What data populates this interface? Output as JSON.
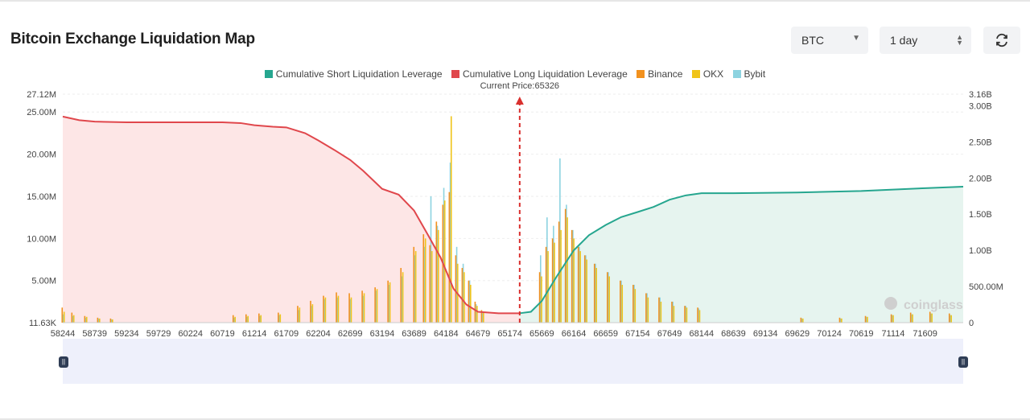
{
  "header": {
    "title": "Bitcoin Exchange Liquidation Map",
    "coin_select": "BTC",
    "range_select": "1 day",
    "refresh_icon": "refresh-icon"
  },
  "colors": {
    "short": "#26a68f",
    "long": "#e0474c",
    "binance": "#f2911e",
    "okx": "#f0c419",
    "bybit": "#8dd3e0",
    "short_fill": "#e6f4ef",
    "long_fill": "#fde6e6",
    "current_price": "#d9302e"
  },
  "chart_data": {
    "type": "bar",
    "title": "Bitcoin Exchange Liquidation Map",
    "legend": [
      {
        "key": "short",
        "label": "Cumulative Short Liquidation Leverage"
      },
      {
        "key": "long",
        "label": "Cumulative Long Liquidation Leverage"
      },
      {
        "key": "binance",
        "label": "Binance"
      },
      {
        "key": "okx",
        "label": "OKX"
      },
      {
        "key": "bybit",
        "label": "Bybit"
      }
    ],
    "legend_position": "top-center",
    "current_price": 65326,
    "current_price_label": "Current Price:65326",
    "x_range": [
      58244,
      72200
    ],
    "x_ticks": [
      58244,
      58739,
      59234,
      59729,
      60224,
      60719,
      61214,
      61709,
      62204,
      62699,
      63194,
      63689,
      64184,
      64679,
      65174,
      65669,
      66164,
      66659,
      67154,
      67649,
      68144,
      68639,
      69134,
      69629,
      70124,
      70619,
      71114,
      71609
    ],
    "y_left": {
      "range": [
        11630,
        27120000
      ],
      "ticks": [
        {
          "value": 11630,
          "label": "11.63K"
        },
        {
          "value": 5000000,
          "label": "5.00M"
        },
        {
          "value": 10000000,
          "label": "10.00M"
        },
        {
          "value": 15000000,
          "label": "15.00M"
        },
        {
          "value": 20000000,
          "label": "20.00M"
        },
        {
          "value": 25000000,
          "label": "25.00M"
        },
        {
          "value": 27120000,
          "label": "27.12M"
        }
      ]
    },
    "y_right": {
      "range": [
        0,
        3160000000
      ],
      "ticks": [
        {
          "value": 0,
          "label": "0"
        },
        {
          "value": 500000000,
          "label": "500.00M"
        },
        {
          "value": 1000000000,
          "label": "1.00B"
        },
        {
          "value": 1500000000,
          "label": "1.50B"
        },
        {
          "value": 2000000000,
          "label": "2.00B"
        },
        {
          "value": 2500000000,
          "label": "2.50B"
        },
        {
          "value": 3000000000,
          "label": "3.00B"
        },
        {
          "value": 3160000000,
          "label": "3.16B"
        }
      ]
    },
    "grid": true,
    "cumulative_long": {
      "x": [
        58244,
        58500,
        58739,
        59234,
        60719,
        61000,
        61214,
        61500,
        61709,
        62000,
        62204,
        62450,
        62699,
        62900,
        63194,
        63450,
        63689,
        63900,
        64100,
        64300,
        64500,
        64679,
        65000,
        65326
      ],
      "y": [
        2850000000,
        2800000000,
        2780000000,
        2770000000,
        2770000000,
        2760000000,
        2730000000,
        2710000000,
        2700000000,
        2620000000,
        2520000000,
        2390000000,
        2250000000,
        2100000000,
        1850000000,
        1770000000,
        1550000000,
        1220000000,
        900000000,
        470000000,
        250000000,
        150000000,
        130000000,
        130000000
      ]
    },
    "cumulative_short": {
      "x": [
        65326,
        65500,
        65669,
        65900,
        66164,
        66400,
        66659,
        66900,
        67154,
        67400,
        67649,
        67900,
        68144,
        68639,
        69629,
        70619,
        71114,
        71609,
        72200
      ],
      "y": [
        130000000,
        150000000,
        300000000,
        640000000,
        1000000000,
        1210000000,
        1350000000,
        1460000000,
        1530000000,
        1600000000,
        1700000000,
        1760000000,
        1790000000,
        1790000000,
        1800000000,
        1820000000,
        1840000000,
        1860000000,
        1880000000
      ]
    },
    "liquidation_bars": {
      "note": "approximate per-price-level intensity (left axis units)",
      "x": [
        58250,
        58400,
        58600,
        58800,
        59000,
        60900,
        61100,
        61300,
        61600,
        61900,
        62100,
        62300,
        62500,
        62700,
        62900,
        63100,
        63300,
        63500,
        63700,
        63850,
        63950,
        64050,
        64150,
        64250,
        64350,
        64450,
        64550,
        64650,
        64750,
        65650,
        65750,
        65850,
        65950,
        66050,
        66150,
        66250,
        66350,
        66500,
        66700,
        66900,
        67100,
        67300,
        67500,
        67700,
        67900,
        68100,
        69700,
        70300,
        70700,
        71100,
        71400,
        71700,
        72000
      ],
      "binance": [
        1800000,
        1200000,
        800000,
        600000,
        500000,
        900000,
        1000000,
        1100000,
        1200000,
        2000000,
        2600000,
        3200000,
        3600000,
        3500000,
        3800000,
        4200000,
        5000000,
        6500000,
        9000000,
        10500000,
        9200000,
        12000000,
        14000000,
        15500000,
        8000000,
        6500000,
        5000000,
        2500000,
        1500000,
        6000000,
        9000000,
        10000000,
        12000000,
        13500000,
        11000000,
        9000000,
        8000000,
        7000000,
        6000000,
        5000000,
        4500000,
        3500000,
        3000000,
        2500000,
        2000000,
        1800000,
        600000,
        600000,
        800000,
        1000000,
        1200000,
        1300000,
        1100000
      ],
      "okx": [
        1300000,
        900000,
        700000,
        500000,
        400000,
        700000,
        800000,
        900000,
        1000000,
        1800000,
        2200000,
        3000000,
        3200000,
        3000000,
        3500000,
        4000000,
        4800000,
        6000000,
        8500000,
        10000000,
        8500000,
        11000000,
        14500000,
        24500000,
        7000000,
        6000000,
        4500000,
        2000000,
        1200000,
        5500000,
        8500000,
        9500000,
        11000000,
        12500000,
        10000000,
        8500000,
        7500000,
        6500000,
        5500000,
        4500000,
        4000000,
        3000000,
        2500000,
        2000000,
        1800000,
        1500000,
        500000,
        500000,
        700000,
        900000,
        1000000,
        1100000,
        900000
      ],
      "bybit": [
        1000000,
        800000,
        600000,
        500000,
        400000,
        600000,
        700000,
        800000,
        900000,
        1500000,
        2000000,
        2800000,
        3000000,
        2800000,
        3200000,
        3800000,
        4500000,
        5500000,
        8000000,
        9000000,
        15000000,
        11500000,
        16000000,
        19000000,
        9000000,
        7000000,
        5000000,
        2200000,
        1300000,
        8000000,
        12500000,
        11500000,
        19500000,
        14000000,
        11000000,
        9000000,
        8000000,
        7000000,
        6000000,
        5000000,
        4500000,
        3500000,
        3000000,
        2500000,
        2000000,
        1700000,
        500000,
        500000,
        700000,
        900000,
        1000000,
        1100000,
        900000
      ]
    },
    "watermark": "coinglass"
  }
}
